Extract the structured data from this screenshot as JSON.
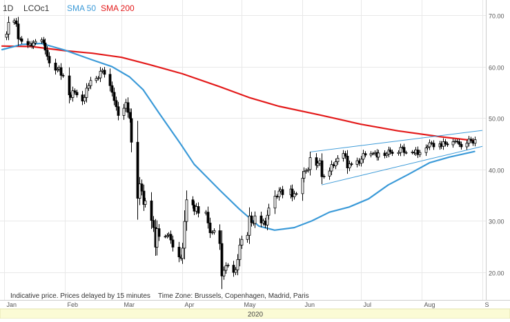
{
  "header": {
    "interval": "1D",
    "symbol": "LCOc1",
    "sma50_label": "SMA 50",
    "sma200_label": "SMA 200"
  },
  "footer": {
    "note": "Indicative price. Prices delayed by 15 minutes",
    "timezone": "Time Zone: Brussels, Copenhagen, Madrid, Paris",
    "year": "2020"
  },
  "colors": {
    "candle": "#000000",
    "sma50": "#3b9ad8",
    "sma200": "#e31a1a",
    "trendline": "#3b9ad8",
    "grid": "#e8e8e8",
    "axis_text": "#555555",
    "year_band": "#fbfbd5"
  },
  "chart_data": {
    "type": "candlestick",
    "title": "",
    "ylim": [
      15,
      74
    ],
    "yticks": [
      20,
      30,
      40,
      50,
      60,
      70
    ],
    "ytick_labels": [
      "20.00",
      "30.00",
      "40.00",
      "50.00",
      "60.00",
      "70.00"
    ],
    "x_labels": [
      {
        "label": "Jan",
        "date": "2020-01-01"
      },
      {
        "label": "Feb",
        "date": "2020-02-01"
      },
      {
        "label": "Mar",
        "date": "2020-03-01"
      },
      {
        "label": "Apr",
        "date": "2020-04-01"
      },
      {
        "label": "May",
        "date": "2020-05-01"
      },
      {
        "label": "Jun",
        "date": "2020-06-01"
      },
      {
        "label": "Jul",
        "date": "2020-07-01"
      },
      {
        "label": "Aug",
        "date": "2020-08-01"
      },
      {
        "label": "S",
        "date": "2020-09-01"
      }
    ],
    "xrange": [
      "2019-12-31",
      "2020-09-01"
    ],
    "grid": true,
    "candles": [
      {
        "date": "2020-01-02",
        "close": 66.3
      },
      {
        "date": "2020-01-03",
        "close": 68.6
      },
      {
        "date": "2020-01-06",
        "close": 68.9
      },
      {
        "date": "2020-01-07",
        "close": 68.3
      },
      {
        "date": "2020-01-08",
        "close": 65.4
      },
      {
        "date": "2020-01-09",
        "close": 65.4
      },
      {
        "date": "2020-01-10",
        "close": 64.9
      },
      {
        "date": "2020-01-13",
        "close": 64.2
      },
      {
        "date": "2020-01-14",
        "close": 64.5
      },
      {
        "date": "2020-01-15",
        "close": 64.0
      },
      {
        "date": "2020-01-16",
        "close": 64.6
      },
      {
        "date": "2020-01-17",
        "close": 64.9
      },
      {
        "date": "2020-01-20",
        "close": 65.2
      },
      {
        "date": "2020-01-21",
        "close": 64.6
      },
      {
        "date": "2020-01-22",
        "close": 63.2
      },
      {
        "date": "2020-01-23",
        "close": 62.0
      },
      {
        "date": "2020-01-24",
        "close": 60.7
      },
      {
        "date": "2020-01-27",
        "close": 59.3
      },
      {
        "date": "2020-01-28",
        "close": 59.5
      },
      {
        "date": "2020-01-29",
        "close": 59.8
      },
      {
        "date": "2020-01-30",
        "close": 58.3
      },
      {
        "date": "2020-01-31",
        "close": 58.2
      },
      {
        "date": "2020-02-03",
        "close": 54.5
      },
      {
        "date": "2020-02-04",
        "close": 54.0
      },
      {
        "date": "2020-02-05",
        "close": 55.3
      },
      {
        "date": "2020-02-06",
        "close": 55.0
      },
      {
        "date": "2020-02-07",
        "close": 54.5
      },
      {
        "date": "2020-02-10",
        "close": 53.3
      },
      {
        "date": "2020-02-11",
        "close": 54.0
      },
      {
        "date": "2020-02-12",
        "close": 55.8
      },
      {
        "date": "2020-02-13",
        "close": 56.3
      },
      {
        "date": "2020-02-14",
        "close": 57.3
      },
      {
        "date": "2020-02-17",
        "close": 57.7
      },
      {
        "date": "2020-02-18",
        "close": 57.8
      },
      {
        "date": "2020-02-19",
        "close": 59.1
      },
      {
        "date": "2020-02-20",
        "close": 59.3
      },
      {
        "date": "2020-02-21",
        "close": 58.5
      },
      {
        "date": "2020-02-24",
        "close": 56.3
      },
      {
        "date": "2020-02-25",
        "close": 55.0
      },
      {
        "date": "2020-02-26",
        "close": 53.4
      },
      {
        "date": "2020-02-27",
        "close": 52.2
      },
      {
        "date": "2020-02-28",
        "close": 50.5
      },
      {
        "date": "2020-03-02",
        "close": 51.9
      },
      {
        "date": "2020-03-03",
        "close": 53.0
      },
      {
        "date": "2020-03-04",
        "close": 51.1
      },
      {
        "date": "2020-03-05",
        "close": 49.9
      },
      {
        "date": "2020-03-06",
        "close": 45.3
      },
      {
        "date": "2020-03-09",
        "close": 34.4
      },
      {
        "date": "2020-03-10",
        "close": 37.2
      },
      {
        "date": "2020-03-11",
        "close": 35.8
      },
      {
        "date": "2020-03-12",
        "close": 33.2
      },
      {
        "date": "2020-03-13",
        "close": 33.9
      },
      {
        "date": "2020-03-16",
        "close": 30.1
      },
      {
        "date": "2020-03-17",
        "close": 28.7
      },
      {
        "date": "2020-03-18",
        "close": 24.9
      },
      {
        "date": "2020-03-19",
        "close": 28.5
      },
      {
        "date": "2020-03-20",
        "close": 26.98
      },
      {
        "date": "2020-03-23",
        "close": 27.0
      },
      {
        "date": "2020-03-24",
        "close": 27.2
      },
      {
        "date": "2020-03-25",
        "close": 27.4
      },
      {
        "date": "2020-03-26",
        "close": 26.3
      },
      {
        "date": "2020-03-27",
        "close": 24.9
      },
      {
        "date": "2020-03-30",
        "close": 23.0
      },
      {
        "date": "2020-03-31",
        "close": 22.7
      },
      {
        "date": "2020-04-01",
        "close": 24.7
      },
      {
        "date": "2020-04-02",
        "close": 29.9
      },
      {
        "date": "2020-04-03",
        "close": 34.1
      },
      {
        "date": "2020-04-06",
        "close": 33.1
      },
      {
        "date": "2020-04-07",
        "close": 31.9
      },
      {
        "date": "2020-04-08",
        "close": 32.8
      },
      {
        "date": "2020-04-09",
        "close": 31.5
      },
      {
        "date": "2020-04-13",
        "close": 31.7
      },
      {
        "date": "2020-04-14",
        "close": 29.6
      },
      {
        "date": "2020-04-15",
        "close": 27.7
      },
      {
        "date": "2020-04-16",
        "close": 27.8
      },
      {
        "date": "2020-04-17",
        "close": 28.1
      },
      {
        "date": "2020-04-20",
        "close": 25.6
      },
      {
        "date": "2020-04-21",
        "close": 19.3
      },
      {
        "date": "2020-04-22",
        "close": 20.4
      },
      {
        "date": "2020-04-23",
        "close": 21.3
      },
      {
        "date": "2020-04-24",
        "close": 21.4
      },
      {
        "date": "2020-04-27",
        "close": 19.99
      },
      {
        "date": "2020-04-28",
        "close": 20.5
      },
      {
        "date": "2020-04-29",
        "close": 22.5
      },
      {
        "date": "2020-04-30",
        "close": 25.3
      },
      {
        "date": "2020-05-01",
        "close": 26.4
      },
      {
        "date": "2020-05-04",
        "close": 27.2
      },
      {
        "date": "2020-05-05",
        "close": 30.97
      },
      {
        "date": "2020-05-06",
        "close": 29.7
      },
      {
        "date": "2020-05-07",
        "close": 29.5
      },
      {
        "date": "2020-05-08",
        "close": 30.97
      },
      {
        "date": "2020-05-11",
        "close": 29.6
      },
      {
        "date": "2020-05-12",
        "close": 29.98
      },
      {
        "date": "2020-05-13",
        "close": 29.2
      },
      {
        "date": "2020-05-14",
        "close": 31.1
      },
      {
        "date": "2020-05-15",
        "close": 32.5
      },
      {
        "date": "2020-05-18",
        "close": 34.8
      },
      {
        "date": "2020-05-19",
        "close": 34.7
      },
      {
        "date": "2020-05-20",
        "close": 35.8
      },
      {
        "date": "2020-05-21",
        "close": 36.1
      },
      {
        "date": "2020-05-22",
        "close": 35.1
      },
      {
        "date": "2020-05-26",
        "close": 36.2
      },
      {
        "date": "2020-05-27",
        "close": 34.7
      },
      {
        "date": "2020-05-28",
        "close": 35.3
      },
      {
        "date": "2020-05-29",
        "close": 35.3
      },
      {
        "date": "2020-06-01",
        "close": 38.3
      },
      {
        "date": "2020-06-02",
        "close": 39.6
      },
      {
        "date": "2020-06-03",
        "close": 39.8
      },
      {
        "date": "2020-06-04",
        "close": 39.99
      },
      {
        "date": "2020-06-05",
        "close": 42.3
      },
      {
        "date": "2020-06-08",
        "close": 40.8
      },
      {
        "date": "2020-06-09",
        "close": 41.2
      },
      {
        "date": "2020-06-10",
        "close": 41.7
      },
      {
        "date": "2020-06-11",
        "close": 38.6
      },
      {
        "date": "2020-06-12",
        "close": 38.7
      },
      {
        "date": "2020-06-15",
        "close": 39.7
      },
      {
        "date": "2020-06-16",
        "close": 40.96
      },
      {
        "date": "2020-06-17",
        "close": 40.7
      },
      {
        "date": "2020-06-18",
        "close": 41.5
      },
      {
        "date": "2020-06-19",
        "close": 42.2
      },
      {
        "date": "2020-06-22",
        "close": 43.1
      },
      {
        "date": "2020-06-23",
        "close": 42.6
      },
      {
        "date": "2020-06-24",
        "close": 40.3
      },
      {
        "date": "2020-06-25",
        "close": 41.1
      },
      {
        "date": "2020-06-26",
        "close": 41.0
      },
      {
        "date": "2020-06-29",
        "close": 41.7
      },
      {
        "date": "2020-06-30",
        "close": 41.2
      },
      {
        "date": "2020-07-01",
        "close": 42.0
      },
      {
        "date": "2020-07-02",
        "close": 43.1
      },
      {
        "date": "2020-07-03",
        "close": 42.8
      },
      {
        "date": "2020-07-06",
        "close": 43.1
      },
      {
        "date": "2020-07-07",
        "close": 43.1
      },
      {
        "date": "2020-07-08",
        "close": 43.3
      },
      {
        "date": "2020-07-09",
        "close": 42.4
      },
      {
        "date": "2020-07-10",
        "close": 43.2
      },
      {
        "date": "2020-07-13",
        "close": 42.7
      },
      {
        "date": "2020-07-14",
        "close": 43.0
      },
      {
        "date": "2020-07-15",
        "close": 43.8
      },
      {
        "date": "2020-07-16",
        "close": 43.4
      },
      {
        "date": "2020-07-17",
        "close": 43.1
      },
      {
        "date": "2020-07-20",
        "close": 43.3
      },
      {
        "date": "2020-07-21",
        "close": 44.3
      },
      {
        "date": "2020-07-22",
        "close": 44.3
      },
      {
        "date": "2020-07-23",
        "close": 43.3
      },
      {
        "date": "2020-07-24",
        "close": 43.3
      },
      {
        "date": "2020-07-27",
        "close": 43.4
      },
      {
        "date": "2020-07-28",
        "close": 43.2
      },
      {
        "date": "2020-07-29",
        "close": 43.8
      },
      {
        "date": "2020-07-30",
        "close": 42.9
      },
      {
        "date": "2020-07-31",
        "close": 43.3
      },
      {
        "date": "2020-08-03",
        "close": 44.2
      },
      {
        "date": "2020-08-04",
        "close": 44.4
      },
      {
        "date": "2020-08-05",
        "close": 45.2
      },
      {
        "date": "2020-08-06",
        "close": 45.1
      },
      {
        "date": "2020-08-07",
        "close": 44.4
      },
      {
        "date": "2020-08-10",
        "close": 45.0
      },
      {
        "date": "2020-08-11",
        "close": 44.5
      },
      {
        "date": "2020-08-12",
        "close": 45.4
      },
      {
        "date": "2020-08-13",
        "close": 44.96
      },
      {
        "date": "2020-08-14",
        "close": 44.8
      },
      {
        "date": "2020-08-17",
        "close": 45.4
      },
      {
        "date": "2020-08-18",
        "close": 45.5
      },
      {
        "date": "2020-08-19",
        "close": 45.4
      },
      {
        "date": "2020-08-20",
        "close": 44.9
      },
      {
        "date": "2020-08-21",
        "close": 44.4
      },
      {
        "date": "2020-08-24",
        "close": 45.1
      },
      {
        "date": "2020-08-25",
        "close": 45.9
      },
      {
        "date": "2020-08-26",
        "close": 45.6
      },
      {
        "date": "2020-08-27",
        "close": 45.1
      },
      {
        "date": "2020-08-28",
        "close": 45.8
      }
    ],
    "sma50": [
      {
        "date": "2019-12-31",
        "value": 63.3
      },
      {
        "date": "2020-01-10",
        "value": 64.3
      },
      {
        "date": "2020-01-20",
        "value": 64.5
      },
      {
        "date": "2020-02-01",
        "value": 63.2
      },
      {
        "date": "2020-02-15",
        "value": 61.3
      },
      {
        "date": "2020-02-25",
        "value": 60.0
      },
      {
        "date": "2020-03-05",
        "value": 58.0
      },
      {
        "date": "2020-03-12",
        "value": 55.5
      },
      {
        "date": "2020-03-20",
        "value": 51.0
      },
      {
        "date": "2020-03-31",
        "value": 45.0
      },
      {
        "date": "2020-04-07",
        "value": 41.0
      },
      {
        "date": "2020-04-20",
        "value": 36.0
      },
      {
        "date": "2020-04-30",
        "value": 32.3
      },
      {
        "date": "2020-05-10",
        "value": 29.0
      },
      {
        "date": "2020-05-18",
        "value": 28.2
      },
      {
        "date": "2020-05-28",
        "value": 28.7
      },
      {
        "date": "2020-06-06",
        "value": 30.0
      },
      {
        "date": "2020-06-15",
        "value": 31.7
      },
      {
        "date": "2020-06-25",
        "value": 32.7
      },
      {
        "date": "2020-07-05",
        "value": 34.3
      },
      {
        "date": "2020-07-15",
        "value": 37.0
      },
      {
        "date": "2020-07-25",
        "value": 39.0
      },
      {
        "date": "2020-08-05",
        "value": 41.3
      },
      {
        "date": "2020-08-15",
        "value": 42.4
      },
      {
        "date": "2020-08-28",
        "value": 43.5
      }
    ],
    "sma200": [
      {
        "date": "2019-12-31",
        "value": 64.0
      },
      {
        "date": "2020-01-15",
        "value": 63.9
      },
      {
        "date": "2020-02-01",
        "value": 63.1
      },
      {
        "date": "2020-02-15",
        "value": 62.6
      },
      {
        "date": "2020-03-01",
        "value": 61.8
      },
      {
        "date": "2020-03-15",
        "value": 60.4
      },
      {
        "date": "2020-04-01",
        "value": 58.6
      },
      {
        "date": "2020-04-20",
        "value": 56.1
      },
      {
        "date": "2020-05-05",
        "value": 54.0
      },
      {
        "date": "2020-05-20",
        "value": 52.3
      },
      {
        "date": "2020-06-10",
        "value": 50.6
      },
      {
        "date": "2020-07-01",
        "value": 48.8
      },
      {
        "date": "2020-07-20",
        "value": 47.5
      },
      {
        "date": "2020-08-10",
        "value": 46.4
      },
      {
        "date": "2020-08-28",
        "value": 45.6
      }
    ],
    "trendlines": [
      {
        "from": {
          "date": "2020-06-05",
          "value": 43.4
        },
        "to": {
          "date": "2020-09-01",
          "value": 47.6
        }
      },
      {
        "from": {
          "date": "2020-06-11",
          "value": 37.0
        },
        "to": {
          "date": "2020-09-01",
          "value": 44.5
        }
      }
    ]
  }
}
